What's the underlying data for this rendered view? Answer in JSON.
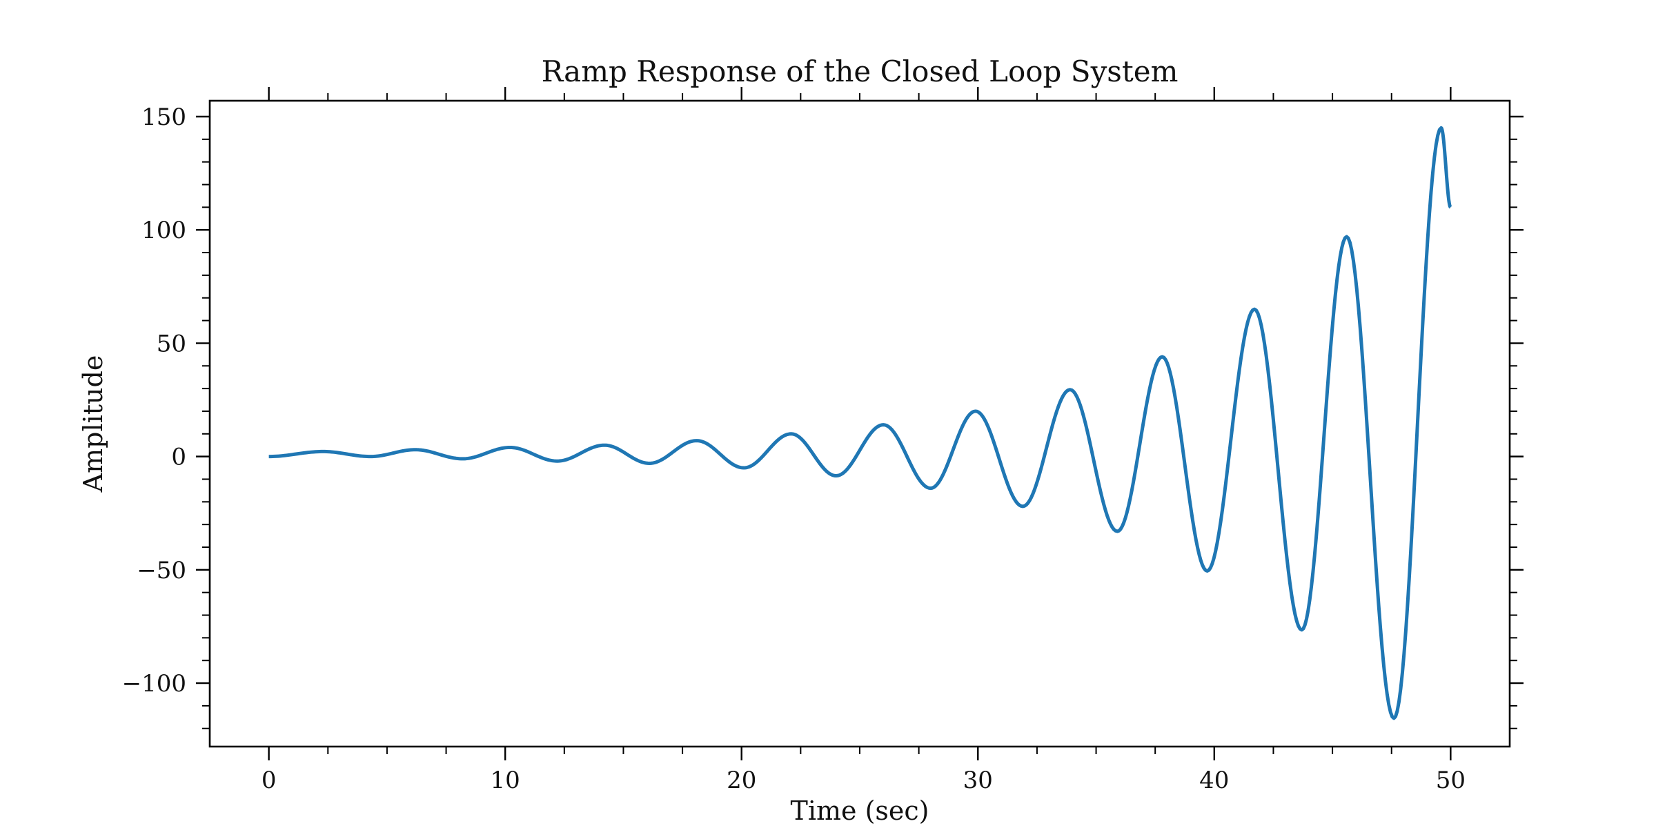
{
  "chart_data": {
    "type": "line",
    "title": "Ramp Response of the Closed Loop System",
    "xlabel": "Time (sec)",
    "ylabel": "Amplitude",
    "xlim": [
      -2.5,
      52.5
    ],
    "ylim": [
      -128,
      157
    ],
    "x_ticks": [
      0,
      10,
      20,
      30,
      40,
      50
    ],
    "x_tick_labels": [
      "0",
      "10",
      "20",
      "30",
      "40",
      "50"
    ],
    "y_ticks": [
      -100,
      -50,
      0,
      50,
      100,
      150
    ],
    "y_tick_labels": [
      "−100",
      "−50",
      "0",
      "50",
      "100",
      "150"
    ],
    "grid": false,
    "legend": "none",
    "series": [
      {
        "color": "#1f77b4",
        "x": [
          0,
          2.3,
          4.3,
          6.2,
          8.2,
          10.2,
          12.2,
          14.2,
          16.1,
          18.1,
          20.1,
          22.1,
          24.0,
          26.0,
          28.0,
          29.9,
          31.9,
          33.9,
          35.9,
          37.8,
          39.7,
          41.7,
          43.7,
          45.6,
          47.6,
          49.6,
          50
        ],
        "y": [
          0,
          2.2,
          0,
          3,
          -1,
          4,
          -2,
          5,
          -3,
          7,
          -5,
          10,
          -8.5,
          14,
          -14,
          20,
          -22,
          29.5,
          -33,
          44,
          -50.5,
          65,
          -76.5,
          97,
          -115.5,
          145,
          110
        ]
      }
    ]
  }
}
